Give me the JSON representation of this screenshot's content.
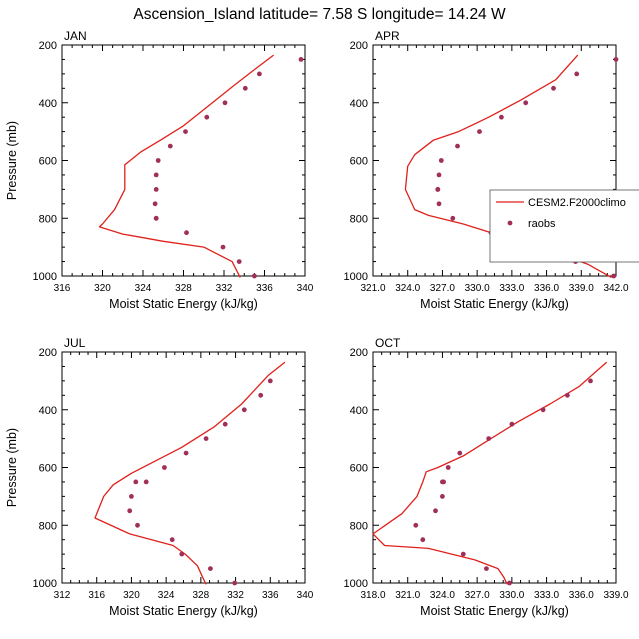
{
  "title": "Ascension_Island  latitude= 7.58 S longitude= 14.24 W",
  "colors": {
    "model": "#e0201b",
    "obs": "#a0305a",
    "axis": "#000000"
  },
  "legend": {
    "model": "CESM2.F2000climo",
    "obs": "raobs"
  },
  "chart_data": [
    {
      "type": "line",
      "panel": "JAN",
      "title": "JAN",
      "xlabel": "Moist Static Energy (kJ/kg)",
      "ylabel": "Pressure (mb)",
      "xlim": [
        316,
        340
      ],
      "ylim": [
        1000,
        200
      ],
      "xticks": [
        316,
        320,
        324,
        328,
        332,
        336,
        340
      ],
      "xtick_labels": [
        "316",
        "320",
        "324",
        "328",
        "332",
        "336",
        "340"
      ],
      "yticks": [
        200,
        400,
        600,
        800,
        1000
      ],
      "ytick_labels": [
        "200",
        "400",
        "600",
        "800",
        "1000"
      ],
      "series": [
        {
          "name": "CESM2.F2000climo",
          "kind": "line",
          "x": [
            336.9,
            335.2,
            333.0,
            330.5,
            328.0,
            325.7,
            323.8,
            322.2,
            322.2,
            321.2,
            320.0,
            319.7,
            322.0,
            326.0,
            330.0,
            332.8,
            333.6
          ],
          "y": [
            235,
            280,
            340,
            410,
            480,
            530,
            570,
            615,
            700,
            770,
            820,
            830,
            855,
            880,
            900,
            950,
            1005
          ]
        },
        {
          "name": "raobs",
          "kind": "scatter",
          "x": [
            339.6,
            335.5,
            334.1,
            332.1,
            330.3,
            328.2,
            326.7,
            325.5,
            325.3,
            325.3,
            325.2,
            325.3,
            325.3,
            328.3,
            331.9,
            333.5,
            335.0
          ],
          "y": [
            250,
            300,
            350,
            400,
            450,
            500,
            550,
            600,
            650,
            700,
            750,
            800,
            800,
            850,
            900,
            950,
            1000
          ]
        }
      ]
    },
    {
      "type": "line",
      "panel": "APR",
      "title": "APR",
      "xlabel": "Moist Static Energy (kJ/kg)",
      "ylabel": "",
      "xlim": [
        321,
        342
      ],
      "ylim": [
        1000,
        200
      ],
      "xticks": [
        321,
        324,
        327,
        330,
        333,
        336,
        339,
        342
      ],
      "xtick_labels": [
        "321.0",
        "324.0",
        "327.0",
        "330.0",
        "333.0",
        "336.0",
        "339.0",
        "342.0"
      ],
      "yticks": [
        200,
        400,
        600,
        800,
        1000
      ],
      "ytick_labels": [
        "200",
        "400",
        "600",
        "800",
        "1000"
      ],
      "series": [
        {
          "name": "CESM2.F2000climo",
          "kind": "line",
          "x": [
            338.7,
            336.8,
            333.8,
            331.0,
            328.4,
            326.2,
            324.6,
            324.0,
            323.8,
            324.6,
            325.8,
            328.8,
            332.8,
            336.8,
            339.6,
            341.6
          ],
          "y": [
            235,
            320,
            390,
            450,
            500,
            530,
            580,
            620,
            700,
            770,
            790,
            820,
            870,
            920,
            960,
            1005
          ]
        },
        {
          "name": "raobs",
          "kind": "scatter",
          "x": [
            342.0,
            338.6,
            336.6,
            334.2,
            332.1,
            330.2,
            328.3,
            326.9,
            326.7,
            326.6,
            326.6,
            326.7,
            327.9,
            331.2,
            334.9,
            338.5,
            341.8
          ],
          "y": [
            250,
            300,
            350,
            400,
            450,
            500,
            550,
            600,
            650,
            700,
            700,
            750,
            800,
            850,
            900,
            950,
            1000
          ]
        }
      ]
    },
    {
      "type": "line",
      "panel": "JUL",
      "title": "JUL",
      "xlabel": "Moist Static Energy (kJ/kg)",
      "ylabel": "Pressure (mb)",
      "xlim": [
        312,
        340
      ],
      "ylim": [
        1000,
        200
      ],
      "xticks": [
        312,
        316,
        320,
        324,
        328,
        332,
        336,
        340
      ],
      "xtick_labels": [
        "312",
        "316",
        "320",
        "324",
        "328",
        "332",
        "336",
        "340"
      ],
      "yticks": [
        200,
        400,
        600,
        800,
        1000
      ],
      "ytick_labels": [
        "200",
        "400",
        "600",
        "800",
        "1000"
      ],
      "series": [
        {
          "name": "CESM2.F2000climo",
          "kind": "line",
          "x": [
            337.7,
            335.8,
            332.7,
            329.5,
            325.8,
            322.6,
            320.0,
            317.9,
            316.8,
            315.8,
            319.8,
            324.8,
            326.2,
            327.6,
            328.2,
            328.6
          ],
          "y": [
            235,
            280,
            380,
            460,
            530,
            580,
            620,
            660,
            700,
            775,
            830,
            870,
            900,
            940,
            980,
            1005
          ]
        },
        {
          "name": "raobs",
          "kind": "scatter",
          "x": [
            336.0,
            334.9,
            333.0,
            330.8,
            328.6,
            326.3,
            323.8,
            321.7,
            320.5,
            320.0,
            319.8,
            320.7,
            324.7,
            325.8,
            329.1,
            331.9
          ],
          "y": [
            300,
            350,
            400,
            450,
            500,
            550,
            600,
            650,
            650,
            700,
            750,
            800,
            850,
            900,
            950,
            1000
          ]
        }
      ]
    },
    {
      "type": "line",
      "panel": "OCT",
      "title": "OCT",
      "xlabel": "Moist Static Energy (kJ/kg)",
      "ylabel": "",
      "xlim": [
        318,
        339
      ],
      "ylim": [
        1000,
        200
      ],
      "xticks": [
        318,
        321,
        324,
        327,
        330,
        333,
        336,
        339
      ],
      "xtick_labels": [
        "318.0",
        "321.0",
        "324.0",
        "327.0",
        "330.0",
        "333.0",
        "336.0",
        "339.0"
      ],
      "yticks": [
        200,
        400,
        600,
        800,
        1000
      ],
      "ytick_labels": [
        "200",
        "400",
        "600",
        "800",
        "1000"
      ],
      "series": [
        {
          "name": "CESM2.F2000climo",
          "kind": "line",
          "x": [
            338.2,
            335.8,
            333.3,
            330.6,
            328.2,
            325.8,
            323.6,
            322.6,
            322.3,
            321.8,
            320.5,
            318.0,
            319.0,
            322.8,
            326.8,
            328.8,
            329.3,
            329.6
          ],
          "y": [
            235,
            320,
            380,
            440,
            500,
            560,
            600,
            615,
            650,
            700,
            760,
            830,
            870,
            880,
            920,
            950,
            980,
            1005
          ]
        },
        {
          "name": "raobs",
          "kind": "scatter",
          "x": [
            336.8,
            334.8,
            332.7,
            330.0,
            328.0,
            325.5,
            324.5,
            324.0,
            324.1,
            324.0,
            323.4,
            321.7,
            322.3,
            325.8,
            327.8,
            329.8
          ],
          "y": [
            300,
            350,
            400,
            450,
            500,
            550,
            600,
            650,
            650,
            700,
            750,
            800,
            850,
            900,
            950,
            1000
          ]
        }
      ]
    }
  ]
}
